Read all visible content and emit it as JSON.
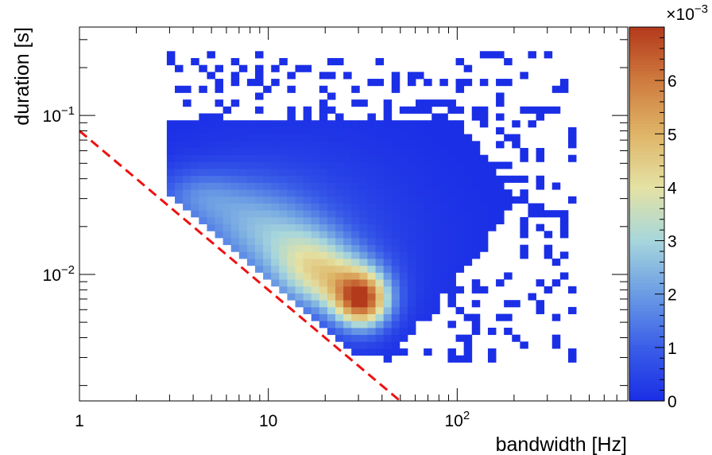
{
  "chart_data": {
    "type": "heatmap",
    "title": "",
    "xlabel": "bandwidth [Hz]",
    "ylabel": "duration [s]",
    "xscale": "log",
    "yscale": "log",
    "xlim": [
      1,
      800
    ],
    "ylim": [
      0.0016,
      0.36
    ],
    "x_ticks": [
      {
        "value": 1,
        "base": "1",
        "exp": ""
      },
      {
        "value": 10,
        "base": "10",
        "exp": ""
      },
      {
        "value": 100,
        "base": "10",
        "exp": "2"
      }
    ],
    "y_ticks": [
      {
        "value": 0.01,
        "base": "10",
        "exp": "−2"
      },
      {
        "value": 0.1,
        "base": "10",
        "exp": "−1"
      }
    ],
    "colorbar": {
      "min": 0,
      "max": 7,
      "ticks": [
        "0",
        "1",
        "2",
        "3",
        "4",
        "5",
        "6"
      ],
      "multiplier_base": "×10",
      "multiplier_exp": "−3",
      "palette": [
        "#1a2ee6",
        "#3a5de8",
        "#6a9be4",
        "#a6d6dc",
        "#e4e2a4",
        "#dfb568",
        "#cf7b3f",
        "#b43a1c"
      ]
    },
    "reference_line": {
      "style": "dashed",
      "color": "#ee1111",
      "points": [
        [
          1,
          0.08
        ],
        [
          55,
          0.00145
        ]
      ]
    },
    "density_blobs": [
      {
        "x": 30,
        "y": 0.0065,
        "sx": 0.1,
        "sy": 0.12,
        "amp": 5.6
      },
      {
        "x": 22,
        "y": 0.0085,
        "sx": 0.16,
        "sy": 0.14,
        "amp": 2.6
      },
      {
        "x": 15,
        "y": 0.012,
        "sx": 0.16,
        "sy": 0.16,
        "amp": 2.3
      },
      {
        "x": 8,
        "y": 0.02,
        "sx": 0.2,
        "sy": 0.18,
        "amp": 1.6
      },
      {
        "x": 4,
        "y": 0.03,
        "sx": 0.16,
        "sy": 0.12,
        "amp": 1.2
      },
      {
        "x": 12,
        "y": 0.015,
        "sx": 0.45,
        "sy": 0.4,
        "amp": 0.8
      }
    ]
  }
}
